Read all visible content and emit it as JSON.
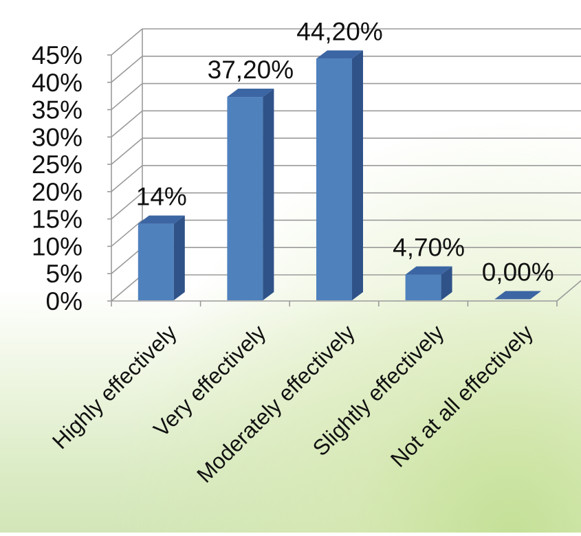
{
  "chart_data": {
    "type": "bar",
    "style": "3d-column",
    "categories": [
      "Highly effectively",
      "Very effectively",
      "Moderately effectively",
      "Slightly effectively",
      "Not at all effectively"
    ],
    "values": [
      14,
      37.2,
      44.2,
      4.7,
      0
    ],
    "data_labels": [
      "14%",
      "37,20%",
      "44,20%",
      "4,70%",
      "0,00%"
    ],
    "y_ticks": [
      0,
      5,
      10,
      15,
      20,
      25,
      30,
      35,
      40,
      45
    ],
    "y_tick_labels": [
      "0%",
      "5%",
      "10%",
      "15%",
      "20%",
      "25%",
      "30%",
      "35%",
      "40%",
      "45%"
    ],
    "ylim": [
      0,
      45
    ],
    "grid": true,
    "legend": "none",
    "title": "",
    "xlabel": "",
    "ylabel": "",
    "colors": {
      "bar_front": "#4f81bd",
      "bar_side": "#2f5288",
      "bar_top": "#3c66a3",
      "gridline": "#9a9a9a",
      "text": "#111111"
    }
  }
}
